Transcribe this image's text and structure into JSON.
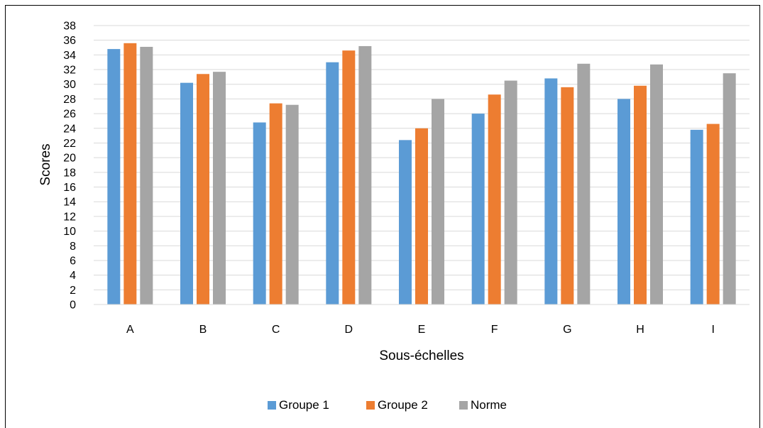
{
  "chart_data": {
    "type": "bar",
    "categories": [
      "A",
      "B",
      "C",
      "D",
      "E",
      "F",
      "G",
      "H",
      "I"
    ],
    "series": [
      {
        "name": "Groupe 1",
        "color": "#5B9BD5",
        "values": [
          34.8,
          30.2,
          24.8,
          33.0,
          22.4,
          26.0,
          30.8,
          28.0,
          23.8
        ]
      },
      {
        "name": "Groupe 2",
        "color": "#ED7D31",
        "values": [
          35.6,
          31.4,
          27.4,
          34.6,
          24.0,
          28.6,
          29.6,
          29.8,
          24.6
        ]
      },
      {
        "name": "Norme",
        "color": "#A5A5A5",
        "values": [
          35.1,
          31.7,
          27.2,
          35.2,
          28.0,
          30.5,
          32.8,
          32.7,
          31.5
        ]
      }
    ],
    "xlabel": "Sous-échelles",
    "ylabel": "Scores",
    "ylim": [
      0,
      38
    ],
    "ytick_step": 2,
    "grid": true,
    "legend_position": "bottom"
  }
}
